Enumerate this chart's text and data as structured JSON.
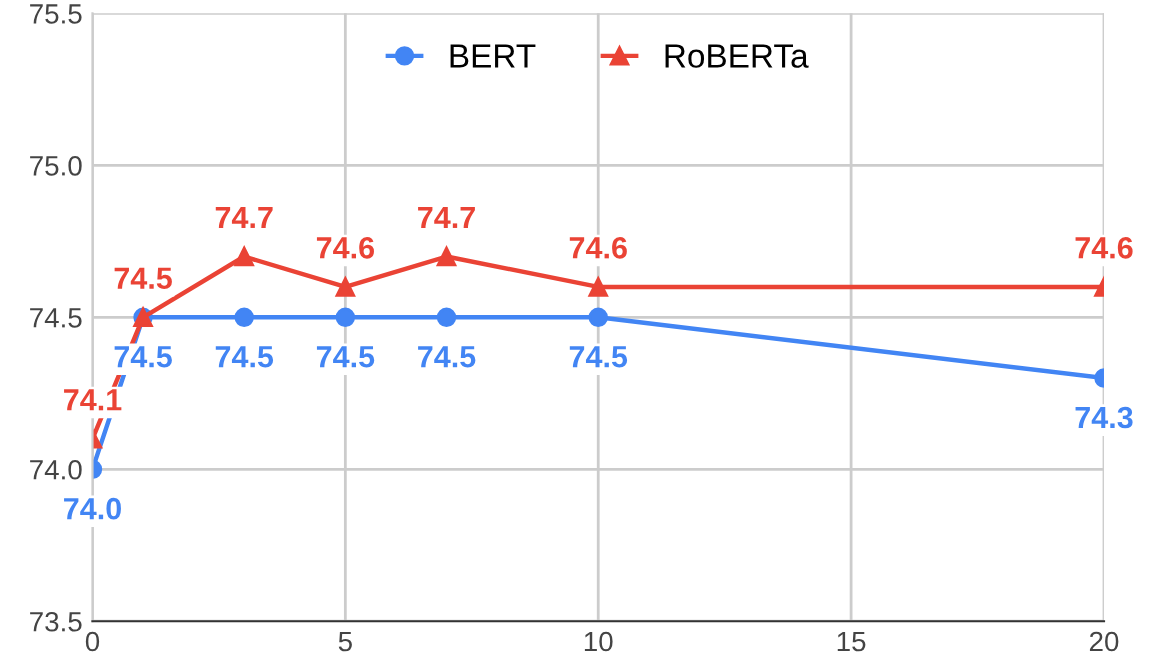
{
  "chart_data": {
    "type": "line",
    "x": [
      0,
      1,
      3,
      5,
      7,
      10,
      20
    ],
    "series": [
      {
        "name": "BERT",
        "color": "#4285f4",
        "marker": "circle",
        "values": [
          74.0,
          74.5,
          74.5,
          74.5,
          74.5,
          74.5,
          74.3
        ],
        "value_labels": [
          "74.0",
          "74.5",
          "74.5",
          "74.5",
          "74.5",
          "74.5",
          "74.3"
        ]
      },
      {
        "name": "RoBERTa",
        "color": "#ea4335",
        "marker": "triangle",
        "values": [
          74.1,
          74.5,
          74.7,
          74.6,
          74.7,
          74.6,
          74.6
        ],
        "value_labels": [
          "74.1",
          "74.5",
          "74.7",
          "74.6",
          "74.7",
          "74.6",
          "74.6"
        ]
      }
    ],
    "xlim": [
      0,
      20
    ],
    "xticks": [
      0,
      5,
      10,
      15,
      20
    ],
    "ylim": [
      73.5,
      75.5
    ],
    "yticks": [
      {
        "value": 73.5,
        "label": "73.5"
      },
      {
        "value": 74.0,
        "label": "74.0"
      },
      {
        "value": 74.5,
        "label": "74.5"
      },
      {
        "value": 75.0,
        "label": "75.0"
      },
      {
        "value": 75.5,
        "label": "75.5"
      }
    ],
    "grid": true,
    "legend": "top"
  }
}
